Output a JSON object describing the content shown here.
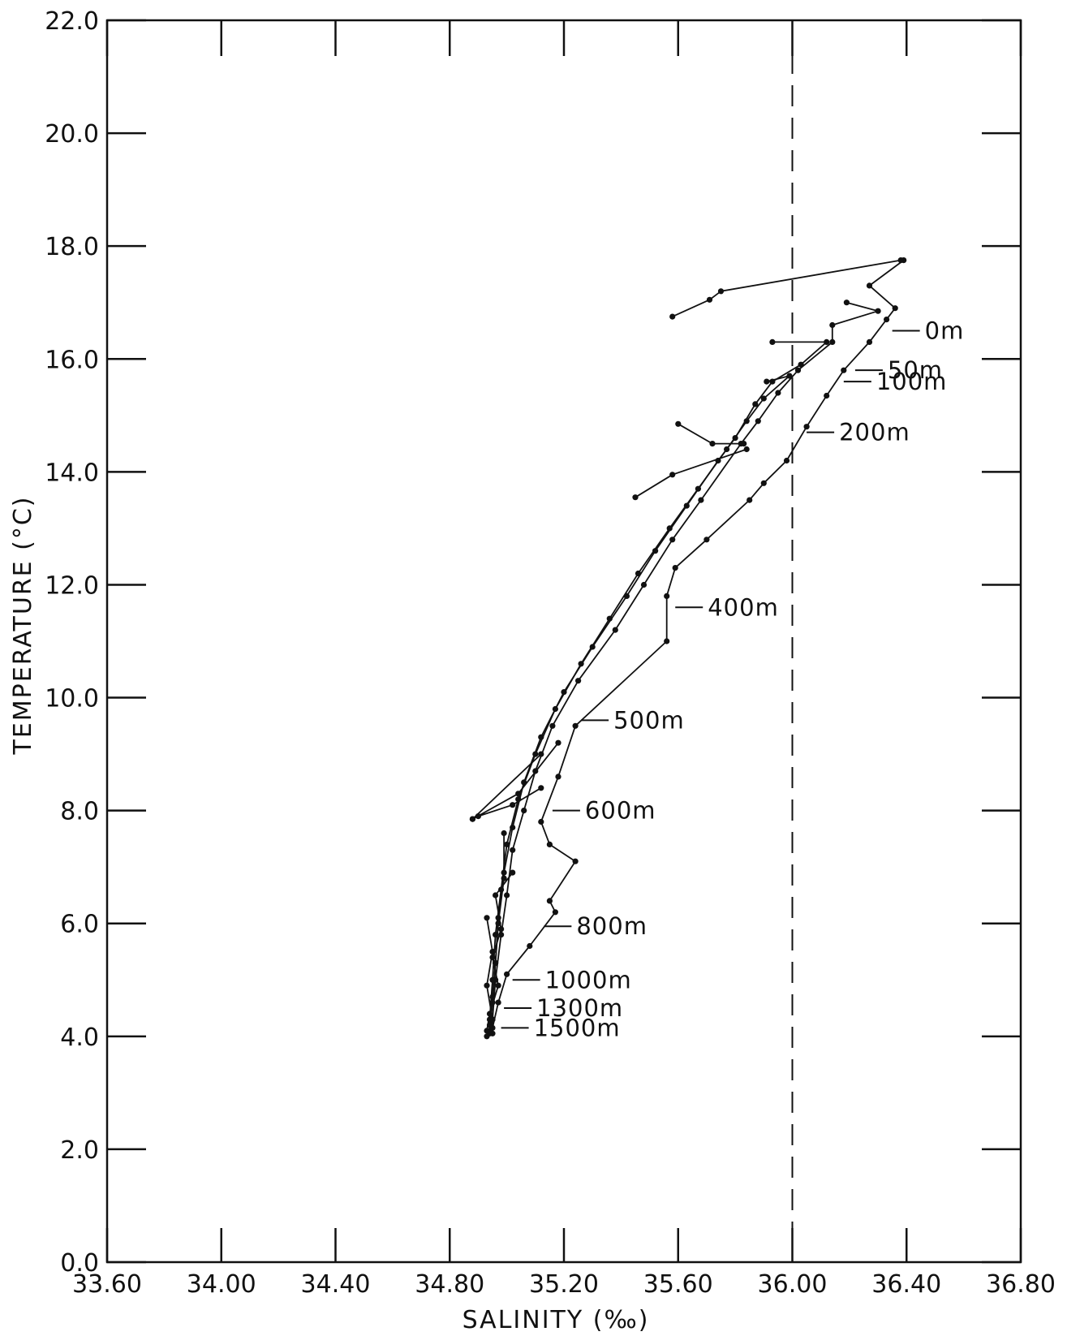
{
  "chart_data": {
    "type": "line",
    "title": "",
    "xlabel": "SALINITY (‰)",
    "ylabel": "TEMPERATURE (°C)",
    "xlim": [
      33.6,
      36.8
    ],
    "ylim": [
      0.0,
      22.0
    ],
    "xticks": [
      "33.60",
      "34.00",
      "34.40",
      "34.80",
      "35.20",
      "35.60",
      "36.00",
      "36.40",
      "36.80"
    ],
    "yticks": [
      "0.0",
      "2.0",
      "4.0",
      "6.0",
      "8.0",
      "10.0",
      "12.0",
      "14.0",
      "16.0",
      "18.0",
      "20.0",
      "22.0"
    ],
    "grid": false,
    "reference_line": {
      "x": 36.0,
      "style": "dashed"
    },
    "depth_labels": [
      {
        "text": "0m",
        "x": 36.35,
        "y": 16.5
      },
      {
        "text": "50m",
        "x": 36.22,
        "y": 15.8
      },
      {
        "text": "100m",
        "x": 36.18,
        "y": 15.6
      },
      {
        "text": "200m",
        "x": 36.05,
        "y": 14.7
      },
      {
        "text": "400m",
        "x": 35.59,
        "y": 11.6
      },
      {
        "text": "500m",
        "x": 35.26,
        "y": 9.6
      },
      {
        "text": "600m",
        "x": 35.16,
        "y": 8.0
      },
      {
        "text": "800m",
        "x": 35.13,
        "y": 5.95
      },
      {
        "text": "1000m",
        "x": 35.02,
        "y": 5.0
      },
      {
        "text": "1300m",
        "x": 34.99,
        "y": 4.5
      },
      {
        "text": "1500m",
        "x": 34.98,
        "y": 4.15
      }
    ],
    "series": [
      {
        "values": [
          [
            36.39,
            17.75
          ],
          [
            36.27,
            17.3
          ],
          [
            36.36,
            16.9
          ],
          [
            36.33,
            16.7
          ],
          [
            36.27,
            16.3
          ],
          [
            36.18,
            15.8
          ],
          [
            36.12,
            15.35
          ],
          [
            36.05,
            14.8
          ],
          [
            35.98,
            14.2
          ],
          [
            35.9,
            13.8
          ],
          [
            35.85,
            13.5
          ],
          [
            35.7,
            12.8
          ],
          [
            35.59,
            12.3
          ],
          [
            35.56,
            11.8
          ],
          [
            35.56,
            11.0
          ],
          [
            35.24,
            9.5
          ],
          [
            35.18,
            8.6
          ],
          [
            35.12,
            7.8
          ],
          [
            35.15,
            7.4
          ],
          [
            35.24,
            7.1
          ],
          [
            35.15,
            6.4
          ],
          [
            35.17,
            6.2
          ],
          [
            35.08,
            5.6
          ],
          [
            35.0,
            5.1
          ],
          [
            34.97,
            4.6
          ],
          [
            34.95,
            4.15
          ]
        ]
      },
      {
        "values": [
          [
            36.38,
            17.75
          ],
          [
            35.75,
            17.2
          ],
          [
            35.71,
            17.05
          ],
          [
            35.58,
            16.75
          ]
        ]
      },
      {
        "values": [
          [
            36.19,
            17.0
          ],
          [
            36.3,
            16.85
          ],
          [
            36.14,
            16.6
          ],
          [
            36.14,
            16.3
          ],
          [
            36.02,
            15.8
          ],
          [
            35.95,
            15.4
          ],
          [
            35.88,
            14.9
          ],
          [
            35.82,
            14.5
          ],
          [
            35.68,
            13.5
          ],
          [
            35.58,
            12.8
          ],
          [
            35.48,
            12.0
          ],
          [
            35.38,
            11.2
          ],
          [
            35.25,
            10.3
          ],
          [
            35.16,
            9.5
          ],
          [
            35.1,
            8.7
          ],
          [
            35.06,
            8.0
          ],
          [
            35.02,
            7.3
          ],
          [
            35.0,
            6.5
          ],
          [
            34.98,
            5.8
          ],
          [
            34.96,
            5.0
          ],
          [
            34.95,
            4.3
          ],
          [
            34.95,
            4.05
          ]
        ]
      },
      {
        "values": [
          [
            35.93,
            16.3
          ],
          [
            36.12,
            16.3
          ],
          [
            36.03,
            15.9
          ],
          [
            35.93,
            15.6
          ],
          [
            35.87,
            15.2
          ],
          [
            35.8,
            14.6
          ],
          [
            35.74,
            14.2
          ],
          [
            35.63,
            13.4
          ],
          [
            35.52,
            12.6
          ],
          [
            35.42,
            11.8
          ],
          [
            35.3,
            10.9
          ],
          [
            35.2,
            10.1
          ],
          [
            35.12,
            9.3
          ],
          [
            35.06,
            8.5
          ],
          [
            35.02,
            7.7
          ],
          [
            34.99,
            6.9
          ],
          [
            34.97,
            6.1
          ],
          [
            34.96,
            5.3
          ],
          [
            34.95,
            4.6
          ],
          [
            34.94,
            4.1
          ]
        ]
      },
      {
        "values": [
          [
            35.91,
            15.6
          ],
          [
            35.99,
            15.7
          ],
          [
            35.9,
            15.3
          ],
          [
            35.84,
            14.9
          ],
          [
            35.77,
            14.4
          ],
          [
            35.67,
            13.7
          ],
          [
            35.57,
            13.0
          ],
          [
            35.46,
            12.2
          ],
          [
            35.36,
            11.4
          ],
          [
            35.26,
            10.6
          ],
          [
            35.17,
            9.8
          ],
          [
            35.1,
            9.0
          ],
          [
            35.04,
            8.2
          ],
          [
            35.0,
            7.4
          ],
          [
            34.98,
            6.6
          ],
          [
            34.96,
            5.8
          ],
          [
            34.95,
            5.0
          ],
          [
            34.94,
            4.3
          ]
        ]
      },
      {
        "values": [
          [
            35.6,
            14.85
          ],
          [
            35.72,
            14.5
          ],
          [
            35.83,
            14.5
          ]
        ]
      },
      {
        "values": [
          [
            35.45,
            13.55
          ],
          [
            35.58,
            13.95
          ],
          [
            35.84,
            14.4
          ]
        ]
      },
      {
        "values": [
          [
            35.18,
            9.2
          ],
          [
            35.04,
            8.3
          ],
          [
            34.88,
            7.85
          ],
          [
            34.9,
            7.9
          ],
          [
            35.02,
            8.1
          ],
          [
            35.12,
            8.4
          ]
        ]
      },
      {
        "values": [
          [
            35.12,
            9.0
          ],
          [
            34.88,
            7.85
          ]
        ]
      },
      {
        "values": [
          [
            34.99,
            7.6
          ],
          [
            34.99,
            6.8
          ],
          [
            34.97,
            6.0
          ],
          [
            34.96,
            5.3
          ],
          [
            34.95,
            4.7
          ],
          [
            34.94,
            4.2
          ],
          [
            34.94,
            4.05
          ]
        ]
      },
      {
        "values": [
          [
            35.02,
            6.9
          ],
          [
            34.96,
            6.5
          ],
          [
            34.98,
            5.9
          ],
          [
            34.95,
            5.4
          ],
          [
            34.97,
            4.9
          ],
          [
            34.94,
            4.4
          ],
          [
            34.93,
            4.1
          ]
        ]
      },
      {
        "values": [
          [
            34.93,
            6.1
          ],
          [
            34.95,
            5.5
          ],
          [
            34.93,
            4.9
          ],
          [
            34.95,
            4.3
          ],
          [
            34.93,
            4.0
          ]
        ]
      }
    ]
  }
}
